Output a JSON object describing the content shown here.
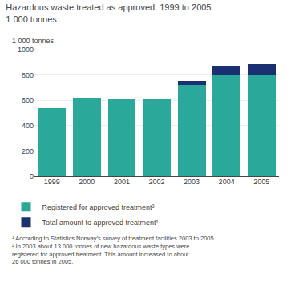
{
  "chart_data": {
    "type": "bar",
    "stacked": true,
    "title": "Hazardous waste treated as approved. 1999 to 2005.",
    "subtitle": "1 000 tonnes",
    "ylabel": "1 000 tonnes",
    "categories": [
      "1999",
      "2000",
      "2001",
      "2002",
      "2003",
      "2004",
      "2005"
    ],
    "series": [
      {
        "name": "Registered for approved treatment²",
        "color": "#2aA89A",
        "values": [
          540,
          620,
          610,
          605,
          720,
          795,
          800
        ]
      },
      {
        "name": "Total amount to approved treatment¹",
        "color": "#1a3070",
        "values": [
          0,
          0,
          0,
          0,
          35,
          70,
          85
        ]
      }
    ],
    "ylim": [
      0,
      1000
    ],
    "yticks": [
      0,
      200,
      400,
      600,
      800,
      1000
    ],
    "grid": true,
    "legend": "bottom",
    "annotations": [
      "¹ According to Statistics Norway’s survey of treatment facilities 2003 to 2005.",
      "² In 2003 about 13 000 tonnes of new hazardous waste types were",
      "registered for approved treatment. This amount increased to about",
      "26 000 tonnes in 2005."
    ]
  }
}
